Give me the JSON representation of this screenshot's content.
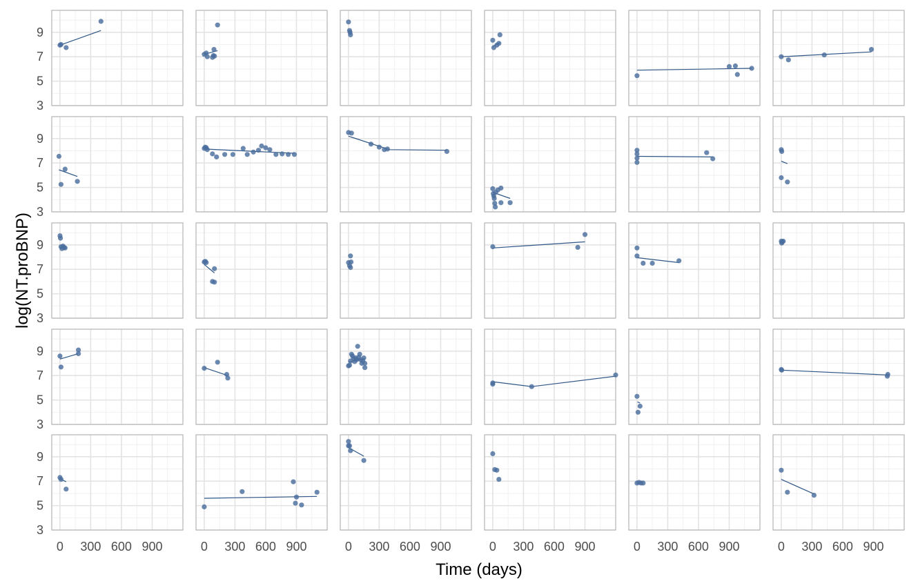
{
  "chart_data": {
    "type": "scatter",
    "subtype": "faceted scatter with per-panel linear fit",
    "xlabel": "Time (days)",
    "ylabel": "log(NT.proBNP)",
    "xlim": [
      -80,
      1200
    ],
    "ylim": [
      3,
      10.8
    ],
    "xticks": [
      0,
      300,
      600,
      900
    ],
    "xtick_labels": [
      "0",
      "300",
      "600",
      "900"
    ],
    "yticks": [
      3,
      5,
      7,
      9
    ],
    "ytick_labels": [
      "3",
      "5",
      "7",
      "9"
    ],
    "grid": true,
    "facet_rows": 5,
    "facet_cols": 6,
    "point_color": "#4a6e9e",
    "line_color": "#2e5585",
    "panels": [
      {
        "points": [
          [
            0,
            7.95
          ],
          [
            10,
            8.0
          ],
          [
            60,
            7.75
          ],
          [
            400,
            9.9
          ]
        ],
        "fit": [
          [
            0,
            7.95
          ],
          [
            400,
            9.15
          ]
        ]
      },
      {
        "points": [
          [
            0,
            7.2
          ],
          [
            20,
            7.3
          ],
          [
            30,
            7.0
          ],
          [
            80,
            6.95
          ],
          [
            90,
            7.1
          ],
          [
            95,
            7.6
          ],
          [
            100,
            7.05
          ],
          [
            130,
            9.6
          ]
        ],
        "fit": [
          [
            0,
            7.2
          ],
          [
            130,
            7.5
          ]
        ]
      },
      {
        "points": [
          [
            0,
            9.85
          ],
          [
            10,
            9.15
          ],
          [
            15,
            9.0
          ],
          [
            20,
            8.8
          ]
        ],
        "fit": []
      },
      {
        "points": [
          [
            0,
            8.35
          ],
          [
            10,
            7.75
          ],
          [
            40,
            7.95
          ],
          [
            60,
            8.1
          ],
          [
            70,
            8.8
          ]
        ],
        "fit": [
          [
            0,
            7.85
          ],
          [
            70,
            8.15
          ]
        ]
      },
      {
        "points": [
          [
            0,
            5.45
          ],
          [
            900,
            6.2
          ],
          [
            960,
            6.25
          ],
          [
            980,
            5.55
          ],
          [
            1120,
            6.05
          ]
        ],
        "fit": [
          [
            0,
            5.9
          ],
          [
            1120,
            6.05
          ]
        ]
      },
      {
        "points": [
          [
            0,
            7.0
          ],
          [
            70,
            6.75
          ],
          [
            420,
            7.15
          ],
          [
            880,
            7.6
          ]
        ],
        "fit": [
          [
            0,
            7.0
          ],
          [
            880,
            7.4
          ]
        ]
      },
      {
        "points": [
          [
            -10,
            7.55
          ],
          [
            10,
            5.25
          ],
          [
            50,
            6.5
          ],
          [
            170,
            5.5
          ]
        ],
        "fit": [
          [
            -10,
            6.45
          ],
          [
            170,
            5.9
          ]
        ]
      },
      {
        "points": [
          [
            0,
            8.2
          ],
          [
            10,
            8.3
          ],
          [
            20,
            8.25
          ],
          [
            30,
            8.1
          ],
          [
            80,
            7.75
          ],
          [
            120,
            7.5
          ],
          [
            200,
            7.7
          ],
          [
            280,
            7.7
          ],
          [
            380,
            8.2
          ],
          [
            420,
            7.7
          ],
          [
            480,
            7.9
          ],
          [
            530,
            8.05
          ],
          [
            560,
            8.4
          ],
          [
            600,
            8.25
          ],
          [
            640,
            8.1
          ],
          [
            700,
            7.7
          ],
          [
            760,
            7.75
          ],
          [
            820,
            7.7
          ],
          [
            880,
            7.7
          ]
        ],
        "fit": [
          [
            0,
            8.15
          ],
          [
            880,
            7.8
          ]
        ]
      },
      {
        "points": [
          [
            0,
            9.5
          ],
          [
            30,
            9.45
          ],
          [
            220,
            8.55
          ],
          [
            300,
            8.3
          ],
          [
            350,
            8.1
          ],
          [
            380,
            8.15
          ],
          [
            960,
            7.95
          ]
        ],
        "fit": [
          [
            0,
            9.2
          ],
          [
            400,
            8.1
          ],
          [
            960,
            8.05
          ]
        ]
      },
      {
        "points": [
          [
            0,
            4.9
          ],
          [
            5,
            4.5
          ],
          [
            10,
            4.3
          ],
          [
            15,
            4.1
          ],
          [
            20,
            3.7
          ],
          [
            25,
            3.4
          ],
          [
            30,
            4.6
          ],
          [
            50,
            4.8
          ],
          [
            80,
            4.95
          ],
          [
            80,
            3.75
          ],
          [
            170,
            3.75
          ]
        ],
        "fit": [
          [
            0,
            4.6
          ],
          [
            170,
            4.1
          ]
        ]
      },
      {
        "points": [
          [
            0,
            8.05
          ],
          [
            0,
            7.75
          ],
          [
            0,
            7.4
          ],
          [
            0,
            7.05
          ],
          [
            680,
            7.85
          ],
          [
            740,
            7.35
          ]
        ],
        "fit": [
          [
            0,
            7.55
          ],
          [
            740,
            7.5
          ]
        ]
      },
      {
        "points": [
          [
            0,
            8.1
          ],
          [
            5,
            7.95
          ],
          [
            0,
            5.8
          ],
          [
            60,
            5.45
          ]
        ],
        "fit": [
          [
            0,
            7.15
          ],
          [
            60,
            6.95
          ]
        ]
      },
      {
        "points": [
          [
            0,
            9.75
          ],
          [
            5,
            9.55
          ],
          [
            10,
            8.85
          ],
          [
            20,
            8.7
          ],
          [
            30,
            8.9
          ],
          [
            40,
            8.8
          ],
          [
            50,
            8.75
          ]
        ],
        "fit": []
      },
      {
        "points": [
          [
            0,
            7.6
          ],
          [
            10,
            7.65
          ],
          [
            20,
            7.55
          ],
          [
            100,
            7.05
          ],
          [
            80,
            6.0
          ],
          [
            100,
            5.95
          ]
        ],
        "fit": [
          [
            0,
            7.4
          ],
          [
            100,
            6.7
          ]
        ]
      },
      {
        "points": [
          [
            0,
            7.55
          ],
          [
            10,
            7.3
          ],
          [
            20,
            8.1
          ],
          [
            20,
            7.15
          ],
          [
            25,
            7.6
          ]
        ],
        "fit": []
      },
      {
        "points": [
          [
            0,
            8.85
          ],
          [
            830,
            8.8
          ],
          [
            900,
            9.85
          ]
        ],
        "fit": [
          [
            0,
            8.75
          ],
          [
            900,
            9.25
          ]
        ]
      },
      {
        "points": [
          [
            0,
            8.75
          ],
          [
            0,
            8.1
          ],
          [
            60,
            7.5
          ],
          [
            150,
            7.5
          ],
          [
            410,
            7.7
          ]
        ],
        "fit": [
          [
            0,
            7.95
          ],
          [
            410,
            7.55
          ]
        ]
      },
      {
        "points": [
          [
            0,
            9.3
          ],
          [
            5,
            9.15
          ],
          [
            10,
            9.25
          ],
          [
            20,
            9.3
          ]
        ],
        "fit": []
      },
      {
        "points": [
          [
            0,
            8.6
          ],
          [
            10,
            7.7
          ],
          [
            180,
            9.1
          ],
          [
            180,
            8.8
          ]
        ],
        "fit": [
          [
            0,
            8.35
          ],
          [
            180,
            8.8
          ]
        ]
      },
      {
        "points": [
          [
            0,
            7.6
          ],
          [
            130,
            8.1
          ],
          [
            220,
            7.1
          ],
          [
            230,
            6.8
          ]
        ],
        "fit": [
          [
            0,
            7.65
          ],
          [
            230,
            7.0
          ]
        ]
      },
      {
        "points": [
          [
            0,
            7.8
          ],
          [
            10,
            7.85
          ],
          [
            20,
            8.2
          ],
          [
            30,
            8.75
          ],
          [
            40,
            8.6
          ],
          [
            50,
            8.4
          ],
          [
            60,
            8.15
          ],
          [
            70,
            8.45
          ],
          [
            80,
            8.3
          ],
          [
            90,
            9.4
          ],
          [
            100,
            8.5
          ],
          [
            110,
            8.75
          ],
          [
            120,
            8.3
          ],
          [
            130,
            8.0
          ],
          [
            140,
            8.2
          ],
          [
            150,
            8.45
          ],
          [
            160,
            8.0
          ],
          [
            160,
            7.65
          ]
        ],
        "fit": [
          [
            0,
            8.1
          ],
          [
            160,
            8.4
          ]
        ]
      },
      {
        "points": [
          [
            0,
            6.4
          ],
          [
            0,
            6.3
          ],
          [
            380,
            6.1
          ],
          [
            1200,
            7.05
          ]
        ],
        "fit": [
          [
            0,
            6.5
          ],
          [
            380,
            6.1
          ],
          [
            1200,
            6.95
          ]
        ]
      },
      {
        "points": [
          [
            0,
            5.3
          ],
          [
            10,
            4.0
          ],
          [
            30,
            4.5
          ]
        ],
        "fit": [
          [
            5,
            4.85
          ],
          [
            30,
            4.75
          ]
        ]
      },
      {
        "points": [
          [
            0,
            7.5
          ],
          [
            5,
            7.45
          ],
          [
            1040,
            7.1
          ],
          [
            1035,
            6.95
          ]
        ],
        "fit": [
          [
            0,
            7.45
          ],
          [
            1040,
            7.05
          ]
        ]
      },
      {
        "points": [
          [
            0,
            7.3
          ],
          [
            10,
            7.15
          ],
          [
            60,
            6.35
          ]
        ],
        "fit": [
          [
            0,
            7.2
          ],
          [
            60,
            6.95
          ]
        ]
      },
      {
        "points": [
          [
            0,
            4.9
          ],
          [
            370,
            6.15
          ],
          [
            870,
            6.95
          ],
          [
            890,
            5.2
          ],
          [
            900,
            5.7
          ],
          [
            950,
            5.05
          ],
          [
            1100,
            6.1
          ]
        ],
        "fit": [
          [
            0,
            5.6
          ],
          [
            1100,
            5.75
          ]
        ]
      },
      {
        "points": [
          [
            0,
            10.25
          ],
          [
            0,
            9.9
          ],
          [
            10,
            9.9
          ],
          [
            20,
            9.5
          ],
          [
            150,
            8.7
          ]
        ],
        "fit": [
          [
            0,
            9.75
          ],
          [
            150,
            9.05
          ]
        ]
      },
      {
        "points": [
          [
            0,
            9.25
          ],
          [
            20,
            7.95
          ],
          [
            40,
            7.9
          ],
          [
            60,
            7.15
          ]
        ],
        "fit": []
      },
      {
        "points": [
          [
            0,
            6.85
          ],
          [
            20,
            6.9
          ],
          [
            40,
            6.85
          ],
          [
            60,
            6.85
          ]
        ],
        "fit": []
      },
      {
        "points": [
          [
            0,
            7.9
          ],
          [
            60,
            6.1
          ],
          [
            320,
            5.85
          ]
        ],
        "fit": [
          [
            0,
            7.15
          ],
          [
            320,
            5.95
          ]
        ]
      }
    ]
  }
}
